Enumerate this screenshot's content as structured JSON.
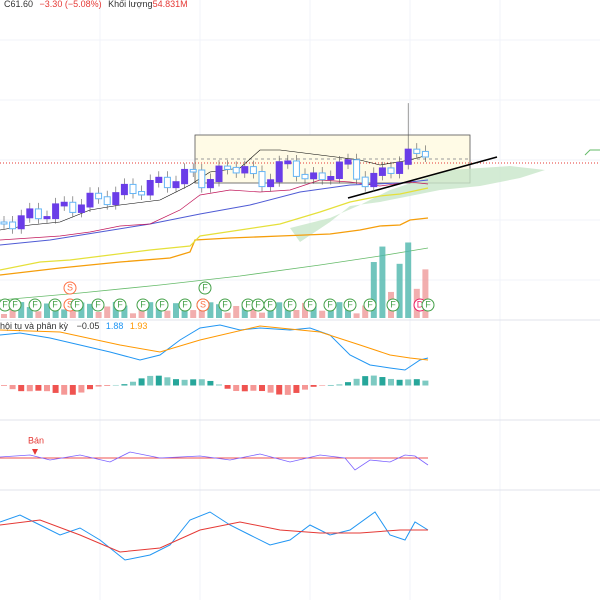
{
  "header": {
    "close": "C61.60",
    "change": "−3.30 (−5.08%)",
    "volume_label": "Khối lượng",
    "volume": "54.831M"
  },
  "macd": {
    "title": "hội tụ và phân kỳ",
    "values": [
      "−0.05",
      "1.88",
      "1.93"
    ]
  },
  "signal_pane": {
    "label": "Bán"
  },
  "markers": [
    "F",
    "F",
    "F",
    "F",
    "S",
    "F",
    "F",
    "F",
    "F",
    "F",
    "F",
    "F",
    "S",
    "F",
    "F",
    "F",
    "F",
    "F",
    "F",
    "F",
    "F",
    "F",
    "F",
    "D",
    "F"
  ],
  "upper_markers": [
    "S",
    "F"
  ]
}
